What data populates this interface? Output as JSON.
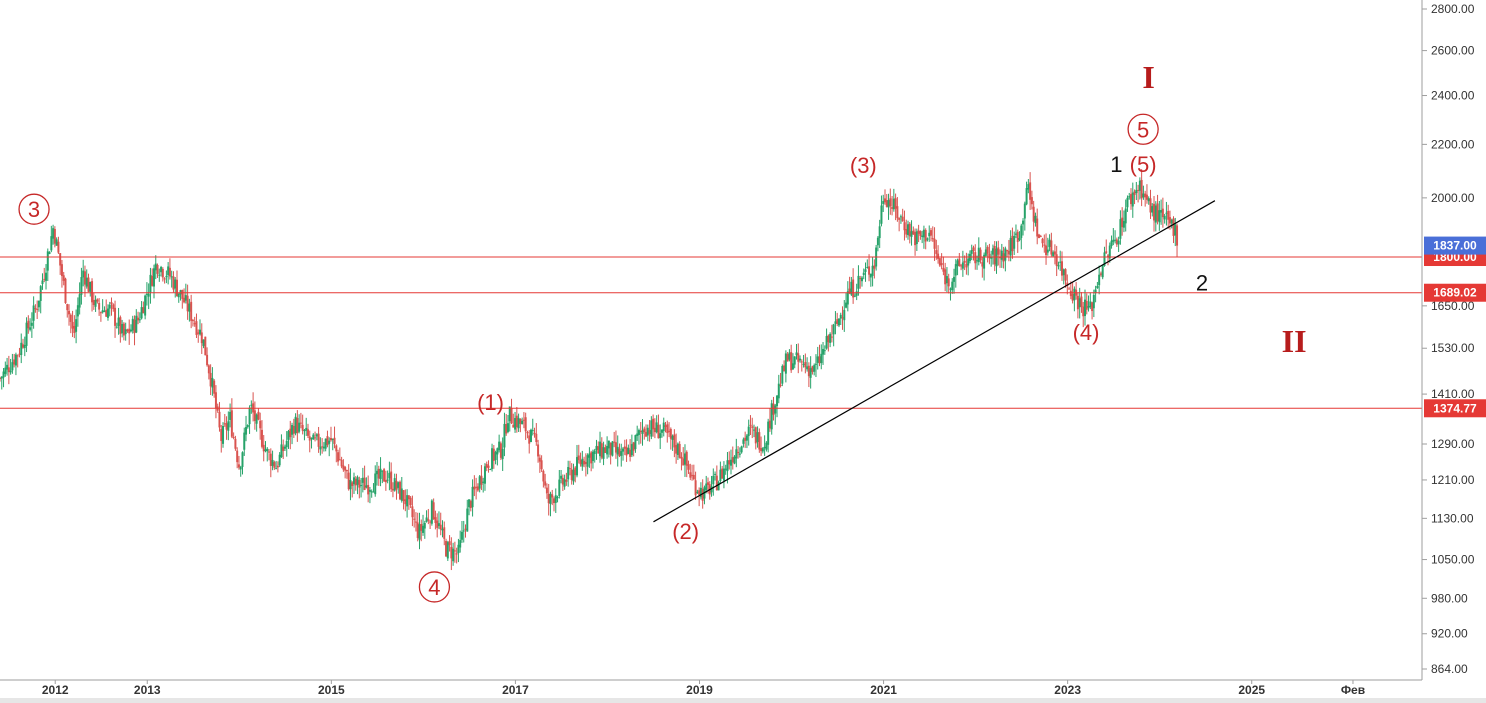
{
  "chart_data": {
    "type": "candlestick",
    "y_scale": "log",
    "ylim": [
      850,
      2880
    ],
    "xlim": [
      2011.0,
      2026.45
    ],
    "grid": false,
    "colors": {
      "up": "#26a269",
      "down": "#d9534f",
      "level_line": "#e53935",
      "trend_line": "#000000",
      "wave_red": "#c62828",
      "wave_black": "#111111",
      "roman": "#b71c1c",
      "current_price_badge": "#4a6fd8",
      "level_badge": "#e53935",
      "axis": "#9e9e9e"
    },
    "y_ticks": [
      {
        "value": 864,
        "label": "864.00"
      },
      {
        "value": 920,
        "label": "920.00"
      },
      {
        "value": 980,
        "label": "980.00"
      },
      {
        "value": 1050,
        "label": "1050.00"
      },
      {
        "value": 1130,
        "label": "1130.00"
      },
      {
        "value": 1210,
        "label": "1210.00"
      },
      {
        "value": 1290,
        "label": "1290.00"
      },
      {
        "value": 1410,
        "label": "1410.00"
      },
      {
        "value": 1530,
        "label": "1530.00"
      },
      {
        "value": 1650,
        "label": "1650.00"
      },
      {
        "value": 2000,
        "label": "2000.00"
      },
      {
        "value": 2200,
        "label": "2200.00"
      },
      {
        "value": 2400,
        "label": "2400.00"
      },
      {
        "value": 2600,
        "label": "2600.00"
      },
      {
        "value": 2800,
        "label": "2800.00"
      }
    ],
    "x_ticks": [
      {
        "value": 2011.6,
        "label": "2012"
      },
      {
        "value": 2012.6,
        "label": "2013"
      },
      {
        "value": 2014.6,
        "label": "2015"
      },
      {
        "value": 2016.6,
        "label": "2017"
      },
      {
        "value": 2018.6,
        "label": "2019"
      },
      {
        "value": 2020.6,
        "label": "2021"
      },
      {
        "value": 2022.6,
        "label": "2023"
      },
      {
        "value": 2024.6,
        "label": "2025"
      },
      {
        "value": 2025.7,
        "label": "Фев"
      }
    ],
    "price_path": [
      [
        2011.0,
        1450
      ],
      [
        2011.2,
        1520
      ],
      [
        2011.4,
        1650
      ],
      [
        2011.5,
        1780
      ],
      [
        2011.58,
        1900
      ],
      [
        2011.7,
        1700
      ],
      [
        2011.8,
        1560
      ],
      [
        2011.9,
        1760
      ],
      [
        2012.05,
        1640
      ],
      [
        2012.2,
        1640
      ],
      [
        2012.35,
        1560
      ],
      [
        2012.5,
        1610
      ],
      [
        2012.7,
        1780
      ],
      [
        2012.85,
        1740
      ],
      [
        2013.05,
        1640
      ],
      [
        2013.2,
        1560
      ],
      [
        2013.3,
        1440
      ],
      [
        2013.4,
        1300
      ],
      [
        2013.5,
        1350
      ],
      [
        2013.6,
        1240
      ],
      [
        2013.72,
        1380
      ],
      [
        2013.9,
        1270
      ],
      [
        2014.0,
        1240
      ],
      [
        2014.2,
        1340
      ],
      [
        2014.4,
        1290
      ],
      [
        2014.6,
        1300
      ],
      [
        2014.8,
        1200
      ],
      [
        2015.0,
        1200
      ],
      [
        2015.2,
        1220
      ],
      [
        2015.4,
        1170
      ],
      [
        2015.55,
        1100
      ],
      [
        2015.7,
        1150
      ],
      [
        2015.85,
        1070
      ],
      [
        2015.98,
        1060
      ],
      [
        2016.1,
        1160
      ],
      [
        2016.3,
        1250
      ],
      [
        2016.45,
        1280
      ],
      [
        2016.52,
        1360
      ],
      [
        2016.7,
        1330
      ],
      [
        2016.85,
        1280
      ],
      [
        2016.95,
        1160
      ],
      [
        2017.1,
        1200
      ],
      [
        2017.35,
        1260
      ],
      [
        2017.6,
        1280
      ],
      [
        2017.8,
        1260
      ],
      [
        2018.0,
        1330
      ],
      [
        2018.2,
        1320
      ],
      [
        2018.4,
        1270
      ],
      [
        2018.55,
        1200
      ],
      [
        2018.65,
        1180
      ],
      [
        2018.8,
        1210
      ],
      [
        2019.0,
        1280
      ],
      [
        2019.15,
        1320
      ],
      [
        2019.3,
        1290
      ],
      [
        2019.4,
        1380
      ],
      [
        2019.55,
        1500
      ],
      [
        2019.7,
        1490
      ],
      [
        2019.85,
        1470
      ],
      [
        2020.0,
        1550
      ],
      [
        2020.1,
        1600
      ],
      [
        2020.2,
        1680
      ],
      [
        2020.35,
        1730
      ],
      [
        2020.5,
        1780
      ],
      [
        2020.6,
        2020
      ],
      [
        2020.8,
        1920
      ],
      [
        2020.95,
        1860
      ],
      [
        2021.1,
        1880
      ],
      [
        2021.2,
        1780
      ],
      [
        2021.3,
        1720
      ],
      [
        2021.45,
        1780
      ],
      [
        2021.6,
        1800
      ],
      [
        2021.8,
        1800
      ],
      [
        2021.95,
        1820
      ],
      [
        2022.1,
        1900
      ],
      [
        2022.15,
        2050
      ],
      [
        2022.3,
        1850
      ],
      [
        2022.45,
        1820
      ],
      [
        2022.6,
        1720
      ],
      [
        2022.75,
        1650
      ],
      [
        2022.85,
        1640
      ],
      [
        2022.95,
        1760
      ],
      [
        2023.05,
        1820
      ],
      [
        2023.15,
        1880
      ],
      [
        2023.25,
        1980
      ],
      [
        2023.38,
        2050
      ],
      [
        2023.5,
        1960
      ],
      [
        2023.65,
        1920
      ],
      [
        2023.75,
        1900
      ],
      [
        2023.8,
        1860
      ]
    ],
    "levels": [
      {
        "value": 1800,
        "label": "1800.00"
      },
      {
        "value": 1689.02,
        "label": "1689.02"
      },
      {
        "value": 1374.77,
        "label": "1374.77"
      }
    ],
    "current_price": {
      "value": 1837,
      "label": "1837.00"
    },
    "trendline": {
      "x1": 2018.1,
      "y1": 1123,
      "x2": 2024.2,
      "y2": 1990
    },
    "wave_labels": [
      {
        "text": "3",
        "x": 2011.37,
        "y": 1960,
        "circled": true,
        "color": "red"
      },
      {
        "text": "4",
        "x": 2015.72,
        "y": 1000,
        "circled": true,
        "color": "red"
      },
      {
        "text": "(1)",
        "x": 2016.33,
        "y": 1390,
        "circled": false,
        "color": "red"
      },
      {
        "text": "(2)",
        "x": 2018.45,
        "y": 1105,
        "circled": false,
        "color": "red"
      },
      {
        "text": "(3)",
        "x": 2020.38,
        "y": 2120,
        "circled": false,
        "color": "red"
      },
      {
        "text": "(4)",
        "x": 2022.8,
        "y": 1575,
        "circled": false,
        "color": "red"
      },
      {
        "text": "(5)",
        "x": 2023.42,
        "y": 2125,
        "circled": false,
        "color": "red"
      },
      {
        "text": "1",
        "x": 2023.13,
        "y": 2125,
        "circled": false,
        "color": "black"
      },
      {
        "text": "5",
        "x": 2023.42,
        "y": 2260,
        "circled": true,
        "color": "red"
      },
      {
        "text": "2",
        "x": 2024.06,
        "y": 1720,
        "circled": false,
        "color": "black"
      },
      {
        "text": "I",
        "x": 2023.48,
        "y": 2480,
        "circled": false,
        "color": "roman"
      },
      {
        "text": "II",
        "x": 2025.06,
        "y": 1550,
        "circled": false,
        "color": "roman"
      }
    ]
  }
}
